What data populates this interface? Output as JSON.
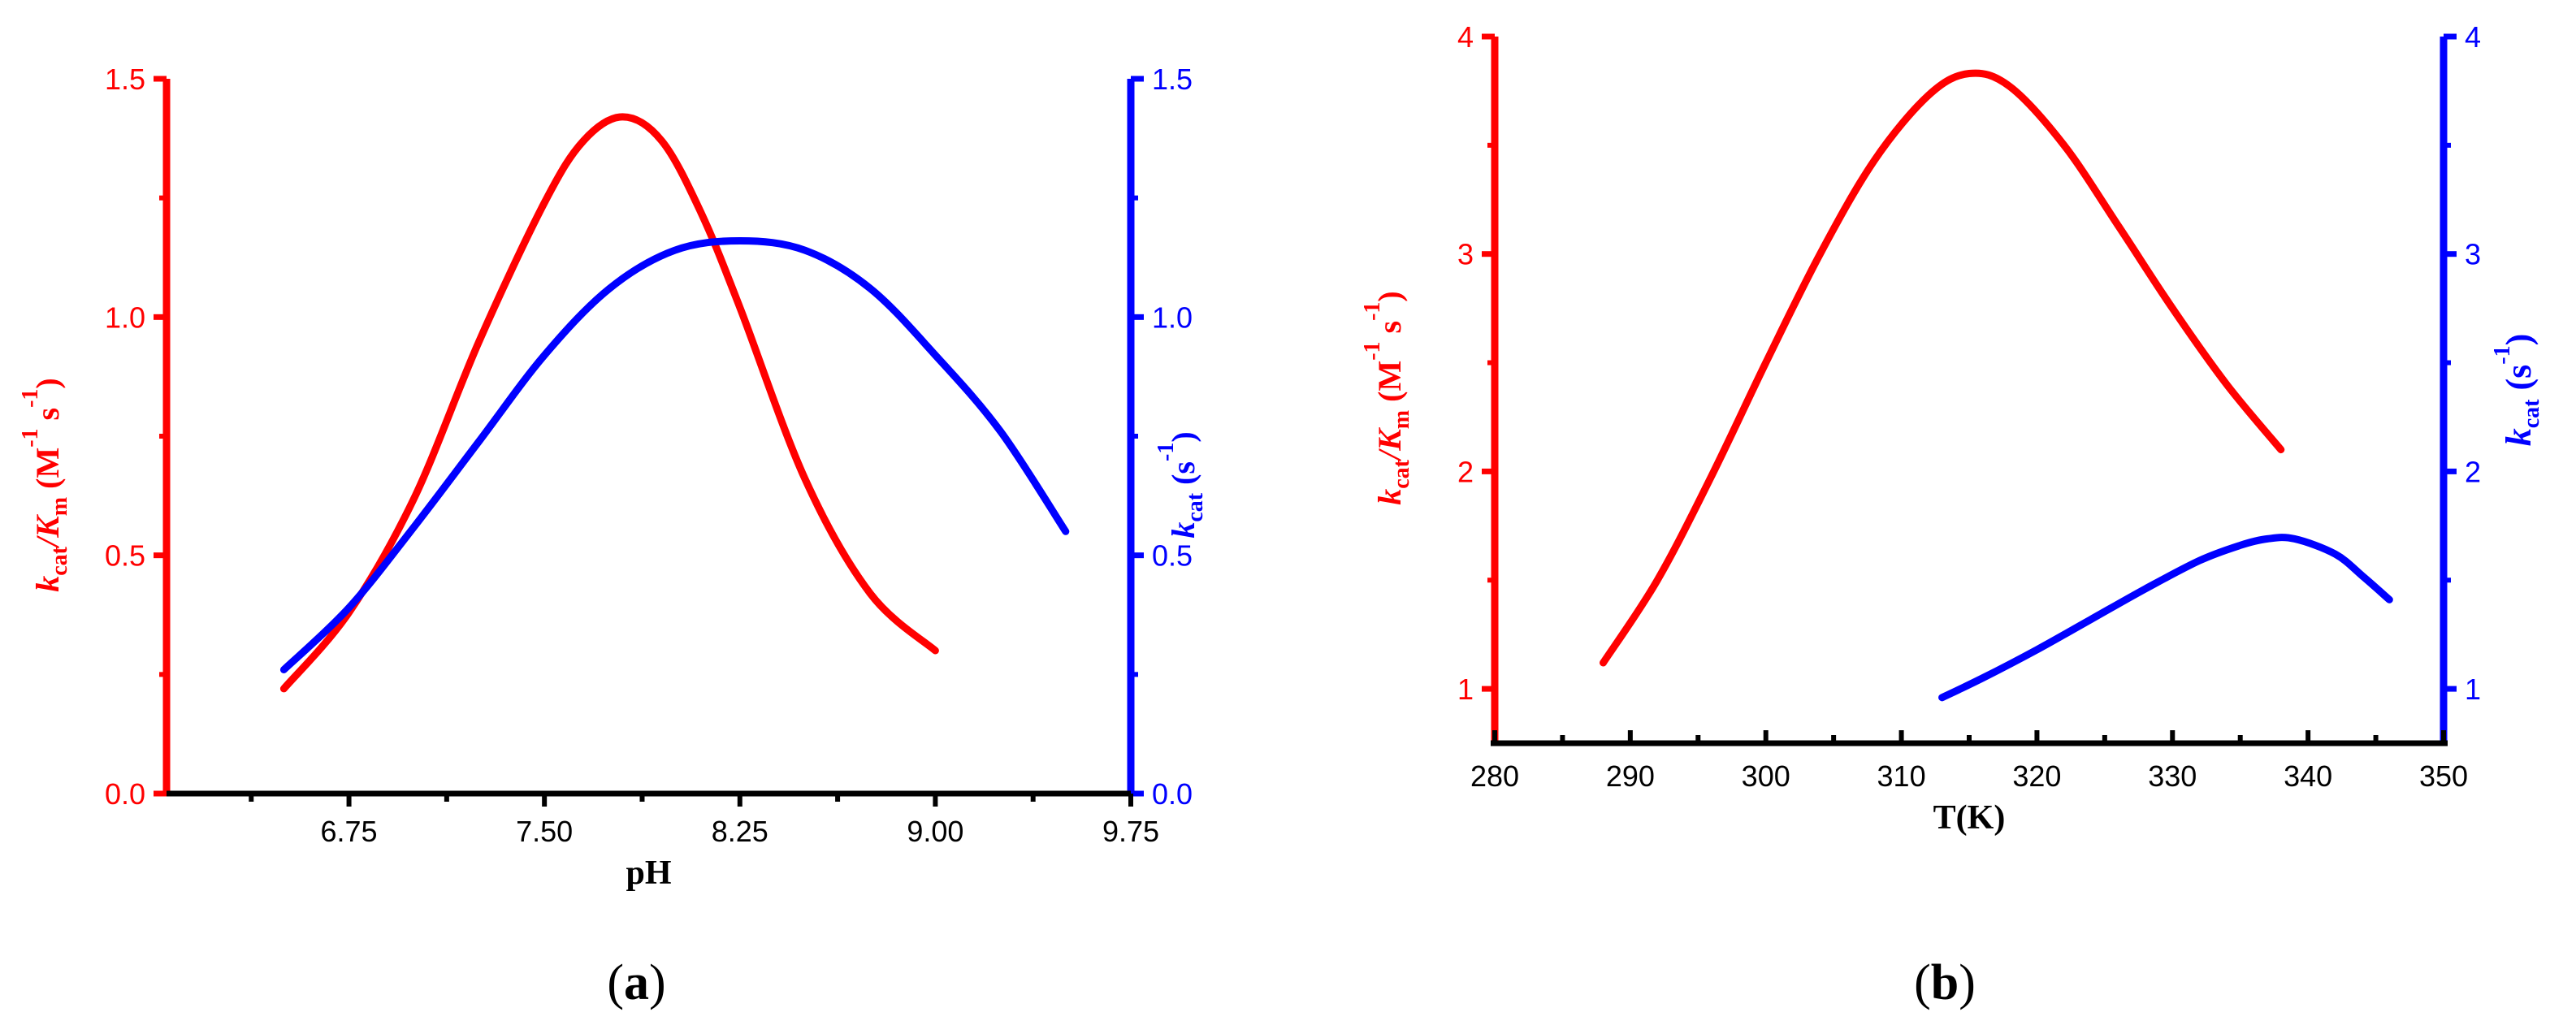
{
  "chart_data": [
    {
      "type": "line",
      "panel_label": "(a)",
      "xlabel": "pH",
      "xlim": [
        6.05,
        9.75
      ],
      "x_ticks": [
        "6.75",
        "7.50",
        "8.25",
        "9.00",
        "9.75"
      ],
      "y_left": {
        "label_parts": [
          "k",
          "cat",
          "/K",
          "m",
          " (M",
          "-1",
          " s",
          "-1",
          ")"
        ],
        "lim": [
          0.0,
          1.5
        ],
        "ticks": [
          "0.0",
          "0.5",
          "1.0",
          "1.5"
        ],
        "color": "#ff0000"
      },
      "y_right": {
        "label_parts": [
          "k",
          "cat",
          " (s",
          "-1",
          ")"
        ],
        "lim": [
          0.0,
          1.5
        ],
        "ticks": [
          "0.0",
          "0.5",
          "1.0",
          "1.5"
        ],
        "color": "#0000ff"
      },
      "series": [
        {
          "axis": "left",
          "color": "#ff0000",
          "x": [
            6.5,
            6.75,
            7.0,
            7.25,
            7.5,
            7.65,
            7.8,
            7.95,
            8.1,
            8.25,
            8.5,
            8.75,
            9.0
          ],
          "y": [
            0.22,
            0.38,
            0.62,
            0.95,
            1.24,
            1.37,
            1.42,
            1.37,
            1.22,
            1.02,
            0.66,
            0.42,
            0.3
          ]
        },
        {
          "axis": "right",
          "color": "#0000ff",
          "x": [
            6.5,
            6.75,
            7.0,
            7.25,
            7.5,
            7.75,
            8.0,
            8.25,
            8.5,
            8.75,
            9.0,
            9.25,
            9.5
          ],
          "y": [
            0.26,
            0.39,
            0.56,
            0.74,
            0.92,
            1.06,
            1.14,
            1.16,
            1.14,
            1.06,
            0.92,
            0.76,
            0.55
          ]
        }
      ]
    },
    {
      "type": "line",
      "panel_label": "(b)",
      "xlabel": "T(K)",
      "xlim": [
        280,
        350
      ],
      "x_ticks": [
        "280",
        "290",
        "300",
        "310",
        "320",
        "330",
        "340",
        "350"
      ],
      "y_left": {
        "label_parts": [
          "k",
          "cat",
          "/K",
          "m",
          " (M",
          "-1",
          " s",
          "-1",
          ")"
        ],
        "lim": [
          0.75,
          4.0
        ],
        "ticks": [
          "1",
          "2",
          "3",
          "4"
        ],
        "color": "#ff0000"
      },
      "y_right": {
        "label_parts": [
          "k",
          "cat",
          " (s",
          "-1",
          ")"
        ],
        "lim": [
          0.75,
          4.0
        ],
        "ticks": [
          "1",
          "2",
          "3",
          "4"
        ],
        "color": "#0000ff"
      },
      "series": [
        {
          "axis": "left",
          "color": "#ff0000",
          "x": [
            288,
            292,
            296,
            300,
            304,
            308,
            312,
            315,
            318,
            322,
            326,
            330,
            334,
            338
          ],
          "y": [
            1.12,
            1.5,
            1.98,
            2.5,
            3.0,
            3.43,
            3.73,
            3.83,
            3.77,
            3.5,
            3.13,
            2.75,
            2.4,
            2.1
          ]
        },
        {
          "axis": "right",
          "color": "#0000ff",
          "x": [
            313,
            316,
            320,
            324,
            328,
            332,
            335,
            337,
            339,
            342,
            344,
            346
          ],
          "y": [
            0.96,
            1.05,
            1.18,
            1.32,
            1.46,
            1.59,
            1.66,
            1.69,
            1.69,
            1.62,
            1.52,
            1.41
          ]
        }
      ]
    }
  ]
}
